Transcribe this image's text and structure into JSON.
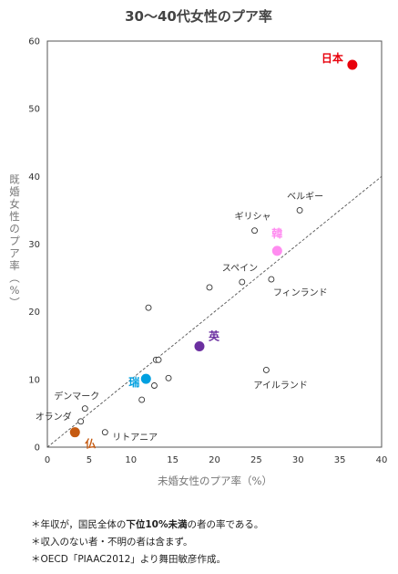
{
  "chart_data": {
    "type": "scatter",
    "title": "30〜40代女性のプア率",
    "xlabel": "未婚女性のプア率（%）",
    "ylabel": "既婚女性のプア率（%）",
    "xlim": [
      0,
      40
    ],
    "ylim": [
      0,
      60
    ],
    "xticks": [
      0,
      5,
      10,
      15,
      20,
      25,
      30,
      35,
      40
    ],
    "yticks": [
      0,
      10,
      20,
      30,
      40,
      50,
      60
    ],
    "grid": false,
    "trendline": {
      "style": "dashed",
      "from": [
        0,
        0
      ],
      "to": [
        40,
        40
      ]
    },
    "points": [
      {
        "label": "日本",
        "x": 36.5,
        "y": 56.5,
        "highlight": true,
        "color": "#e8000b"
      },
      {
        "label": "韓",
        "x": 27.5,
        "y": 29.0,
        "highlight": true,
        "color": "#ff8cf0"
      },
      {
        "label": "英",
        "x": 18.2,
        "y": 14.9,
        "highlight": true,
        "color": "#6b2fa0"
      },
      {
        "label": "瑞",
        "x": 11.8,
        "y": 10.1,
        "highlight": true,
        "color": "#00a0e0"
      },
      {
        "label": "仏",
        "x": 3.3,
        "y": 2.2,
        "highlight": true,
        "color": "#c55a11"
      },
      {
        "label": "ベルギー",
        "x": 30.2,
        "y": 35.0,
        "highlight": false
      },
      {
        "label": "ギリシャ",
        "x": 24.8,
        "y": 32.0,
        "highlight": false
      },
      {
        "label": "スペイン",
        "x": 23.3,
        "y": 24.4,
        "highlight": false
      },
      {
        "label": "フィンランド",
        "x": 26.8,
        "y": 24.8,
        "highlight": false
      },
      {
        "label": "アイルランド",
        "x": 26.2,
        "y": 11.4,
        "highlight": false
      },
      {
        "label": "デンマーク",
        "x": 4.5,
        "y": 5.7,
        "highlight": false
      },
      {
        "label": "オランダ",
        "x": 4.0,
        "y": 3.8,
        "highlight": false
      },
      {
        "label": "リトアニア",
        "x": 6.9,
        "y": 2.2,
        "highlight": false
      },
      {
        "label": "",
        "x": 12.1,
        "y": 20.6,
        "highlight": false
      },
      {
        "label": "",
        "x": 19.4,
        "y": 23.6,
        "highlight": false
      },
      {
        "label": "",
        "x": 13.0,
        "y": 12.9,
        "highlight": false
      },
      {
        "label": "",
        "x": 13.3,
        "y": 12.9,
        "highlight": false
      },
      {
        "label": "",
        "x": 14.5,
        "y": 10.2,
        "highlight": false
      },
      {
        "label": "",
        "x": 12.8,
        "y": 9.1,
        "highlight": false
      },
      {
        "label": "",
        "x": 11.3,
        "y": 7.0,
        "highlight": false
      }
    ]
  },
  "notes": {
    "line1_pre": "＊年収が，国民全体の",
    "line1_bold": "下位10%未満",
    "line1_post": "の者の率である。",
    "line2": "＊収入のない者・不明の者は含まず。",
    "line3": "＊OECD「PIAAC2012」より舞田敏彦作成。"
  }
}
